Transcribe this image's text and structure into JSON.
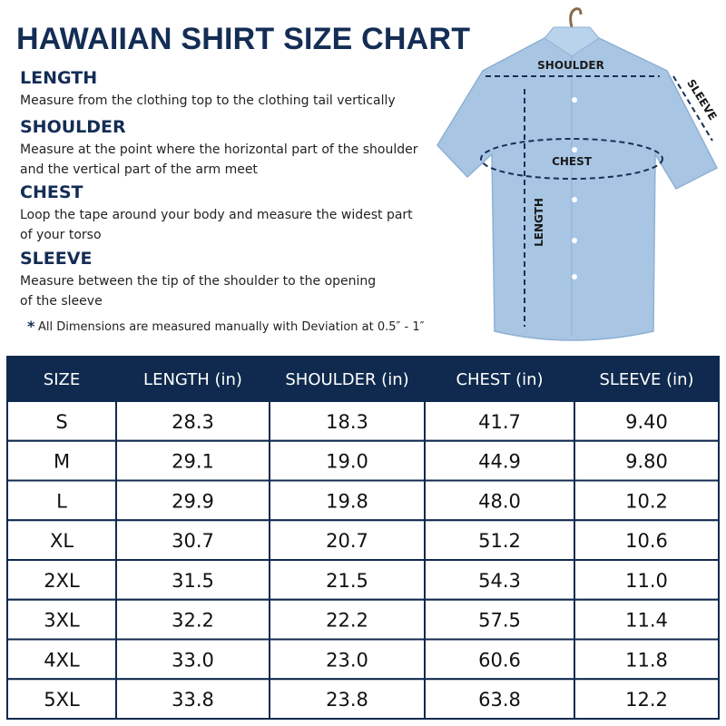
{
  "header": {
    "title": "HAWAIIAN SHIRT SIZE CHART"
  },
  "sections": [
    {
      "heading": "LENGTH",
      "text": [
        "Measure from the clothing top to the clothing tail vertically"
      ]
    },
    {
      "heading": "SHOULDER",
      "text": [
        "Measure at the point where the horizontal part of the shoulder",
        "and the vertical part of the arm meet"
      ]
    },
    {
      "heading": "CHEST",
      "text": [
        "Loop the tape around your body and measure the widest part",
        "of your torso"
      ]
    },
    {
      "heading": "SLEEVE",
      "text": [
        "Measure between the tip of the shoulder to the opening",
        "of the sleeve"
      ]
    }
  ],
  "note": "All Dimensions are measured manually with Deviation at 0.5″ - 1″",
  "diagram": {
    "shoulder": "SHOULDER",
    "sleeve": "SLEEVE",
    "chest": "CHEST",
    "length": "LENGTH"
  },
  "table": {
    "columns": [
      "SIZE",
      "LENGTH (in)",
      "SHOULDER (in)",
      "CHEST (in)",
      "SLEEVE (in)"
    ],
    "rows": [
      [
        "S",
        "28.3",
        "18.3",
        "41.7",
        "9.40"
      ],
      [
        "M",
        "29.1",
        "19.0",
        "44.9",
        "9.80"
      ],
      [
        "L",
        "29.9",
        "19.8",
        "48.0",
        "10.2"
      ],
      [
        "XL",
        "30.7",
        "20.7",
        "51.2",
        "10.6"
      ],
      [
        "2XL",
        "31.5",
        "21.5",
        "54.3",
        "11.0"
      ],
      [
        "3XL",
        "32.2",
        "22.2",
        "57.5",
        "11.4"
      ],
      [
        "4XL",
        "33.0",
        "23.0",
        "60.6",
        "11.8"
      ],
      [
        "5XL",
        "33.8",
        "23.8",
        "63.8",
        "12.2"
      ]
    ]
  }
}
